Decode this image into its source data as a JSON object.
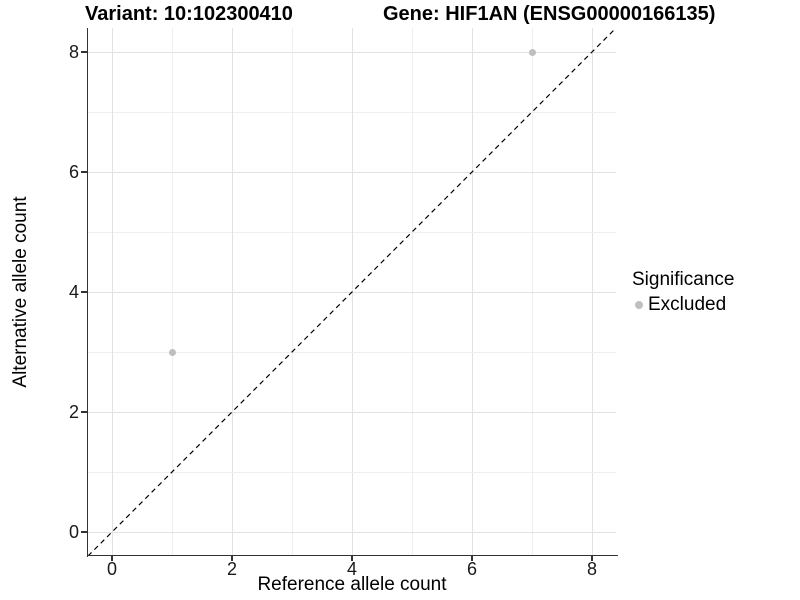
{
  "chart_data": {
    "type": "scatter",
    "titles": [
      "Variant: 10:102300410",
      "Gene: HIF1AN (ENSG00000166135)"
    ],
    "xlabel": "Reference allele count",
    "ylabel": "Alternative allele count",
    "xlim": [
      -0.4,
      8.4
    ],
    "ylim": [
      -0.4,
      8.4
    ],
    "xticks": [
      0,
      2,
      4,
      6,
      8
    ],
    "yticks": [
      0,
      2,
      4,
      6,
      8
    ],
    "grid": "light gray gridlines at every integer; majors at even values",
    "points": [
      {
        "x": 1,
        "y": 3,
        "significance": "Excluded"
      },
      {
        "x": 7,
        "y": 8,
        "significance": "Excluded"
      }
    ],
    "point_color": "#bfbfbf",
    "identity_line": {
      "style": "dashed",
      "color": "#000000",
      "equation": "y = x"
    },
    "legend": {
      "title": "Significance",
      "position": "right",
      "entries": [
        {
          "label": "Excluded",
          "color": "#bfbfbf"
        }
      ]
    }
  },
  "colors": {
    "grid_major": "#e2e2e2",
    "grid_minor": "#efefef",
    "axis_line": "#333333",
    "tick_label": "#1a1a1a",
    "title": "#000000"
  }
}
